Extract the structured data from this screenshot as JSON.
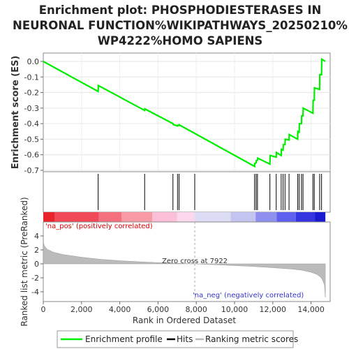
{
  "title_lines": [
    "Enrichment plot: PHOSPHODIESTERASES IN",
    "NEURONAL FUNCTION%WIKIPATHWAYS_20250210%",
    "WP4222%HOMO SAPIENS"
  ],
  "colors": {
    "enrichment": "#00ee00",
    "hits": "#000000",
    "metric_fill": "#bbbbbb",
    "pos_label": "#dd0000",
    "neg_label": "#3333cc",
    "zero_line": "#aaaaaa"
  },
  "chart_data": [
    {
      "type": "line",
      "name": "enrichment-profile",
      "ylabel": "Enrichment score (ES)",
      "xlim": [
        0,
        15000
      ],
      "ylim": [
        -0.7,
        0.05
      ],
      "yticks": [
        0.0,
        -0.1,
        -0.2,
        -0.3,
        -0.4,
        -0.5,
        -0.6,
        -0.7
      ],
      "ytick_labels": [
        "0.0",
        "-0.1",
        "-0.2",
        "-0.3",
        "-0.4",
        "-0.5",
        "-0.6",
        "-0.7"
      ],
      "x": [
        0,
        2870,
        2880,
        5300,
        5310,
        6780,
        6790,
        7020,
        7030,
        7100,
        7110,
        11050,
        11060,
        11130,
        11140,
        11200,
        11210,
        11850,
        11860,
        12180,
        12190,
        12440,
        12450,
        12540,
        12550,
        12640,
        12650,
        12850,
        12860,
        13300,
        13310,
        13380,
        13390,
        13500,
        13510,
        13580,
        13590,
        14100,
        14110,
        14170,
        14180,
        14450,
        14460,
        14550,
        14560,
        14750
      ],
      "y": [
        0.0,
        -0.193,
        -0.155,
        -0.315,
        -0.305,
        -0.4,
        -0.405,
        -0.415,
        -0.41,
        -0.412,
        -0.408,
        -0.675,
        -0.655,
        -0.652,
        -0.638,
        -0.635,
        -0.622,
        -0.66,
        -0.605,
        -0.615,
        -0.585,
        -0.605,
        -0.565,
        -0.57,
        -0.535,
        -0.535,
        -0.5,
        -0.505,
        -0.47,
        -0.5,
        -0.45,
        -0.455,
        -0.4,
        -0.4,
        -0.35,
        -0.35,
        -0.3,
        -0.333,
        -0.25,
        -0.25,
        -0.17,
        -0.18,
        -0.085,
        -0.085,
        0.015,
        0.0
      ]
    },
    {
      "type": "scatter",
      "name": "hits",
      "xlim": [
        0,
        15000
      ],
      "x": [
        2870,
        5300,
        6780,
        7020,
        7100,
        7920,
        11050,
        11130,
        11200,
        11850,
        12180,
        12440,
        12540,
        12640,
        12850,
        13300,
        13380,
        13500,
        13580,
        14100,
        14170,
        14450,
        14550
      ]
    },
    {
      "type": "area",
      "name": "ranked-list-metric",
      "xlabel": "Rank in Ordered Dataset",
      "ylabel": "Ranked list metric (PreRanked)",
      "xlim": [
        0,
        15000
      ],
      "ylim": [
        -5,
        5
      ],
      "xticks": [
        0,
        2000,
        4000,
        6000,
        8000,
        10000,
        12000,
        14000
      ],
      "xtick_labels": [
        "0",
        "2,000",
        "4,000",
        "6,000",
        "8,000",
        "10,000",
        "12,000",
        "14,000"
      ],
      "yticks": [
        4,
        2,
        0,
        -2,
        -4
      ],
      "ytick_labels": [
        "4",
        "2",
        "0",
        "-2",
        "-4"
      ],
      "x": [
        0,
        50,
        200,
        500,
        1000,
        2000,
        3000,
        4000,
        5000,
        6000,
        7000,
        7922,
        9000,
        10000,
        11000,
        12000,
        13000,
        13500,
        14000,
        14300,
        14500,
        14600,
        14700,
        14750
      ],
      "y": [
        3.2,
        2.6,
        2.1,
        1.7,
        1.35,
        0.95,
        0.65,
        0.45,
        0.3,
        0.17,
        0.08,
        0.0,
        -0.12,
        -0.25,
        -0.38,
        -0.55,
        -0.75,
        -0.9,
        -1.2,
        -1.5,
        -1.9,
        -2.3,
        -3.0,
        -4.8
      ],
      "zero_cross_label": "Zero cross at 7922",
      "zero_cross_x": 7922,
      "pos_label": "'na_pos' (positively correlated)",
      "neg_label": "'na_neg' (negatively correlated)"
    }
  ],
  "legend": {
    "items": [
      {
        "label": "Enrichment profile",
        "color": "#00ee00"
      },
      {
        "label": "Hits",
        "color": "#000000"
      },
      {
        "label": "Ranking metric scores",
        "color": "#bbbbbb"
      }
    ]
  }
}
